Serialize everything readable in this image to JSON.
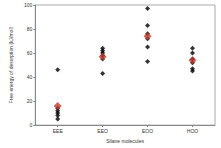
{
  "chart_data": {
    "type": "scatter",
    "x_label": "Silane molecules",
    "y_label": "Free energy of desorption (kJ/mol)",
    "categories": [
      "EEE",
      "EEO",
      "EOO",
      "HOO"
    ],
    "series": [
      {
        "color": "#000000",
        "marker": "diamond",
        "values": [
          [
            46,
            14,
            12,
            10,
            8,
            5
          ],
          [
            64,
            62,
            60,
            58,
            55,
            43
          ],
          [
            97,
            83,
            76,
            72,
            65,
            53
          ],
          [
            64,
            60,
            55,
            52,
            47,
            45
          ]
        ]
      },
      {
        "color": "#c0392b",
        "marker": "diamond",
        "values": [
          [
            16
          ],
          [
            57
          ],
          [
            74
          ],
          [
            54
          ]
        ]
      }
    ],
    "ylim": [
      0,
      100
    ],
    "yticks": [
      0,
      20,
      40,
      60,
      80,
      100
    ],
    "grid": false
  }
}
